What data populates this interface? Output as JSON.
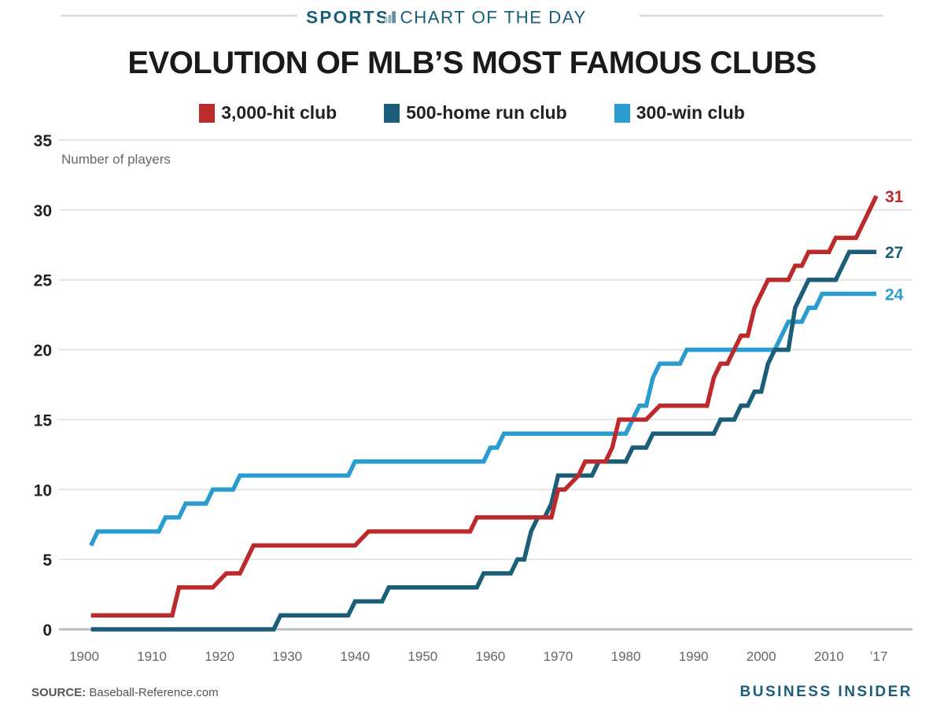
{
  "header": {
    "kicker_bold": "SPORTS",
    "kicker_rest": "CHART OF THE DAY",
    "title": "EVOLUTION OF MLB’S MOST FAMOUS CLUBS"
  },
  "footer": {
    "source_label": "SOURCE:",
    "source_text": "Baseball-Reference.com",
    "brand": "BUSINESS INSIDER"
  },
  "colors": {
    "hits": "#bc2a2c",
    "hr": "#1b5e78",
    "wins": "#2b9ccf",
    "brand": "#1b5e78"
  },
  "chart_data": {
    "type": "line",
    "title": "EVOLUTION OF MLB’S MOST FAMOUS CLUBS",
    "xlabel": "",
    "ylabel": "Number of players",
    "xlim": [
      1900,
      2017
    ],
    "ylim": [
      0,
      35
    ],
    "grid": true,
    "legend_position": "top-center",
    "x_ticks": [
      1900,
      1910,
      1920,
      1930,
      1940,
      1950,
      1960,
      1970,
      1980,
      1990,
      2000,
      2010,
      2017
    ],
    "x_tick_labels": [
      "1900",
      "1910",
      "1920",
      "1930",
      "1940",
      "1950",
      "1960",
      "1970",
      "1980",
      "1990",
      "2000",
      "2010",
      "’17"
    ],
    "y_ticks": [
      0,
      5,
      10,
      15,
      20,
      25,
      30,
      35
    ],
    "y_tick_labels": [
      "0",
      "5",
      "10",
      "15",
      "20",
      "25",
      "30",
      "35"
    ],
    "series": [
      {
        "name": "3,000-hit club",
        "key": "hits",
        "end_label": "31",
        "points": [
          [
            1901,
            1
          ],
          [
            1913,
            1
          ],
          [
            1914,
            3
          ],
          [
            1919,
            3
          ],
          [
            1921,
            4
          ],
          [
            1923,
            4
          ],
          [
            1925,
            6
          ],
          [
            1940,
            6
          ],
          [
            1942,
            7
          ],
          [
            1957,
            7
          ],
          [
            1958,
            8
          ],
          [
            1969,
            8
          ],
          [
            1970,
            10
          ],
          [
            1971,
            10
          ],
          [
            1973,
            11
          ],
          [
            1974,
            12
          ],
          [
            1977,
            12
          ],
          [
            1978,
            13
          ],
          [
            1979,
            15
          ],
          [
            1983,
            15
          ],
          [
            1985,
            16
          ],
          [
            1992,
            16
          ],
          [
            1993,
            18
          ],
          [
            1994,
            19
          ],
          [
            1995,
            19
          ],
          [
            1997,
            21
          ],
          [
            1998,
            21
          ],
          [
            1999,
            23
          ],
          [
            2001,
            25
          ],
          [
            2004,
            25
          ],
          [
            2005,
            26
          ],
          [
            2006,
            26
          ],
          [
            2007,
            27
          ],
          [
            2010,
            27
          ],
          [
            2011,
            28
          ],
          [
            2014,
            28
          ],
          [
            2017,
            31
          ]
        ]
      },
      {
        "name": "500-home run club",
        "key": "hr",
        "end_label": "27",
        "points": [
          [
            1901,
            0
          ],
          [
            1928,
            0
          ],
          [
            1929,
            1
          ],
          [
            1939,
            1
          ],
          [
            1940,
            2
          ],
          [
            1944,
            2
          ],
          [
            1945,
            3
          ],
          [
            1958,
            3
          ],
          [
            1959,
            4
          ],
          [
            1963,
            4
          ],
          [
            1964,
            5
          ],
          [
            1965,
            5
          ],
          [
            1966,
            7
          ],
          [
            1967,
            8
          ],
          [
            1968,
            8
          ],
          [
            1969,
            9
          ],
          [
            1970,
            11
          ],
          [
            1975,
            11
          ],
          [
            1976,
            12
          ],
          [
            1980,
            12
          ],
          [
            1981,
            13
          ],
          [
            1983,
            13
          ],
          [
            1984,
            14
          ],
          [
            1993,
            14
          ],
          [
            1994,
            15
          ],
          [
            1996,
            15
          ],
          [
            1997,
            16
          ],
          [
            1998,
            16
          ],
          [
            1999,
            17
          ],
          [
            2000,
            17
          ],
          [
            2001,
            19
          ],
          [
            2002,
            20
          ],
          [
            2004,
            20
          ],
          [
            2005,
            23
          ],
          [
            2007,
            25
          ],
          [
            2011,
            25
          ],
          [
            2013,
            27
          ],
          [
            2017,
            27
          ]
        ]
      },
      {
        "name": "300-win club",
        "key": "wins",
        "end_label": "24",
        "points": [
          [
            1901,
            6
          ],
          [
            1902,
            7
          ],
          [
            1911,
            7
          ],
          [
            1912,
            8
          ],
          [
            1914,
            8
          ],
          [
            1915,
            9
          ],
          [
            1918,
            9
          ],
          [
            1919,
            10
          ],
          [
            1922,
            10
          ],
          [
            1923,
            11
          ],
          [
            1939,
            11
          ],
          [
            1940,
            12
          ],
          [
            1959,
            12
          ],
          [
            1960,
            13
          ],
          [
            1961,
            13
          ],
          [
            1962,
            14
          ],
          [
            1980,
            14
          ],
          [
            1982,
            16
          ],
          [
            1983,
            16
          ],
          [
            1984,
            18
          ],
          [
            1985,
            19
          ],
          [
            1988,
            19
          ],
          [
            1989,
            20
          ],
          [
            2002,
            20
          ],
          [
            2004,
            22
          ],
          [
            2006,
            22
          ],
          [
            2007,
            23
          ],
          [
            2008,
            23
          ],
          [
            2009,
            24
          ],
          [
            2017,
            24
          ]
        ]
      }
    ]
  }
}
